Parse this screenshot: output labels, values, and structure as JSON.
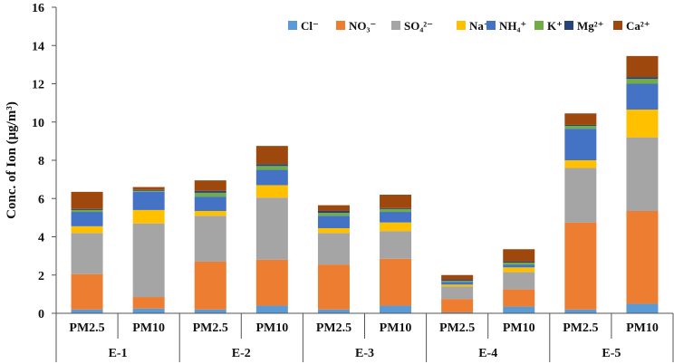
{
  "chart_data": {
    "type": "bar",
    "stacked": true,
    "ylabel": "Conc. of Ion (μg/m³)",
    "ylim": [
      0,
      16
    ],
    "yticks": [
      0,
      2,
      4,
      6,
      8,
      10,
      12,
      14,
      16
    ],
    "groups": [
      "E-1",
      "E-2",
      "E-3",
      "E-4",
      "E-5"
    ],
    "bar_labels": [
      "PM2.5",
      "PM10"
    ],
    "categories": [
      "E-1 PM2.5",
      "E-1 PM10",
      "E-2 PM2.5",
      "E-2 PM10",
      "E-3 PM2.5",
      "E-3 PM10",
      "E-4 PM2.5",
      "E-4 PM10",
      "E-5 PM2.5",
      "E-5 PM10"
    ],
    "legend_position": "top-right",
    "grid": false,
    "series": [
      {
        "name": "Cl⁻",
        "color": "#5b9bd5",
        "values": [
          0.2,
          0.25,
          0.2,
          0.4,
          0.2,
          0.4,
          0.05,
          0.35,
          0.2,
          0.5
        ]
      },
      {
        "name": "NO₃⁻",
        "color": "#ed7d31",
        "values": [
          1.85,
          0.6,
          2.5,
          2.4,
          2.35,
          2.45,
          0.7,
          0.9,
          4.55,
          4.85
        ]
      },
      {
        "name": "SO₄²⁻",
        "color": "#a5a5a5",
        "values": [
          2.15,
          3.85,
          2.4,
          3.25,
          1.65,
          1.45,
          0.65,
          0.9,
          2.85,
          3.85
        ]
      },
      {
        "name": "Na⁺",
        "color": "#ffc000",
        "values": [
          0.35,
          0.7,
          0.25,
          0.65,
          0.25,
          0.45,
          0.1,
          0.25,
          0.4,
          1.45
        ]
      },
      {
        "name": "NH₄⁺",
        "color": "#4472c4",
        "values": [
          0.75,
          0.95,
          0.75,
          0.8,
          0.65,
          0.55,
          0.15,
          0.15,
          1.65,
          1.35
        ]
      },
      {
        "name": "K⁺",
        "color": "#70ad47",
        "values": [
          0.1,
          0.05,
          0.2,
          0.2,
          0.15,
          0.15,
          0.05,
          0.1,
          0.15,
          0.25
        ]
      },
      {
        "name": "Mg²⁺",
        "color": "#264478",
        "values": [
          0.05,
          0.05,
          0.1,
          0.1,
          0.1,
          0.05,
          0.05,
          0.05,
          0.05,
          0.1
        ]
      },
      {
        "name": "Ca²⁺",
        "color": "#9e480e",
        "values": [
          0.9,
          0.15,
          0.55,
          0.95,
          0.3,
          0.7,
          0.25,
          0.65,
          0.6,
          1.1
        ]
      }
    ]
  }
}
